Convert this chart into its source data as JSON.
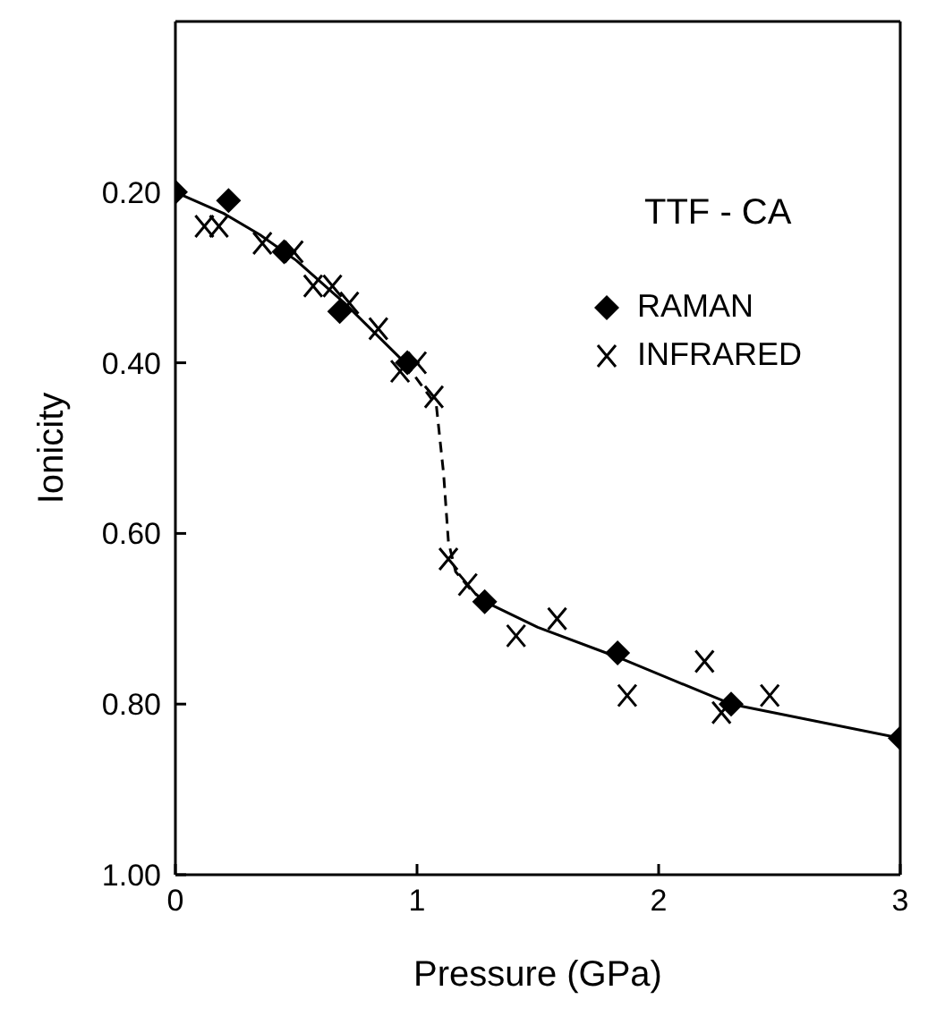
{
  "chart_data": {
    "type": "scatter",
    "xlabel": "Pressure (GPa)",
    "ylabel": "Ionicity",
    "legend_title": "TTF - CA",
    "legend": "top right",
    "grid": false,
    "xlim": [
      0,
      3
    ],
    "xticks": [
      0,
      1,
      2,
      3
    ],
    "ylim": [
      1.0,
      0.0
    ],
    "yticks": [
      {
        "value": 0.2,
        "label": "0.20"
      },
      {
        "value": 0.4,
        "label": "0.40"
      },
      {
        "value": 0.6,
        "label": "0.60"
      },
      {
        "value": 0.8,
        "label": "0.80"
      },
      {
        "value": 1.0,
        "label": "1.00"
      }
    ],
    "series": [
      {
        "name": "RAMAN",
        "marker": "diamond",
        "color": "#000000",
        "x": [
          0,
          0.22,
          0.45,
          0.68,
          0.96,
          1.28,
          1.83,
          2.3,
          3.0
        ],
        "values": [
          0.2,
          0.21,
          0.27,
          0.34,
          0.4,
          0.68,
          0.74,
          0.8,
          0.84
        ]
      },
      {
        "name": "INFRARED",
        "marker": "cross",
        "color": "#000000",
        "x": [
          0.12,
          0.18,
          0.36,
          0.49,
          0.57,
          0.65,
          0.72,
          0.84,
          0.93,
          1.0,
          1.07,
          1.13,
          1.21,
          1.41,
          1.58,
          1.87,
          2.19,
          2.26,
          2.46
        ],
        "values": [
          0.24,
          0.24,
          0.26,
          0.27,
          0.31,
          0.31,
          0.33,
          0.36,
          0.41,
          0.4,
          0.44,
          0.63,
          0.66,
          0.72,
          0.7,
          0.79,
          0.75,
          0.81,
          0.79
        ]
      },
      {
        "type": "line",
        "line_style": "solid",
        "marker": "none",
        "color": "#000000",
        "x": [
          0,
          0.2,
          0.35,
          0.5,
          0.7,
          0.95
        ],
        "values": [
          0.2,
          0.225,
          0.25,
          0.28,
          0.33,
          0.4
        ]
      },
      {
        "type": "line",
        "line_style": "dashed",
        "marker": "none",
        "color": "#000000",
        "x": [
          0.95,
          1.08,
          1.11,
          1.13,
          1.16,
          1.22,
          1.28
        ],
        "values": [
          0.4,
          0.45,
          0.53,
          0.61,
          0.645,
          0.665,
          0.68
        ]
      },
      {
        "type": "line",
        "line_style": "solid",
        "marker": "none",
        "color": "#000000",
        "x": [
          1.28,
          1.5,
          1.83,
          2.3,
          3.0
        ],
        "values": [
          0.68,
          0.71,
          0.745,
          0.8,
          0.84
        ]
      }
    ]
  }
}
